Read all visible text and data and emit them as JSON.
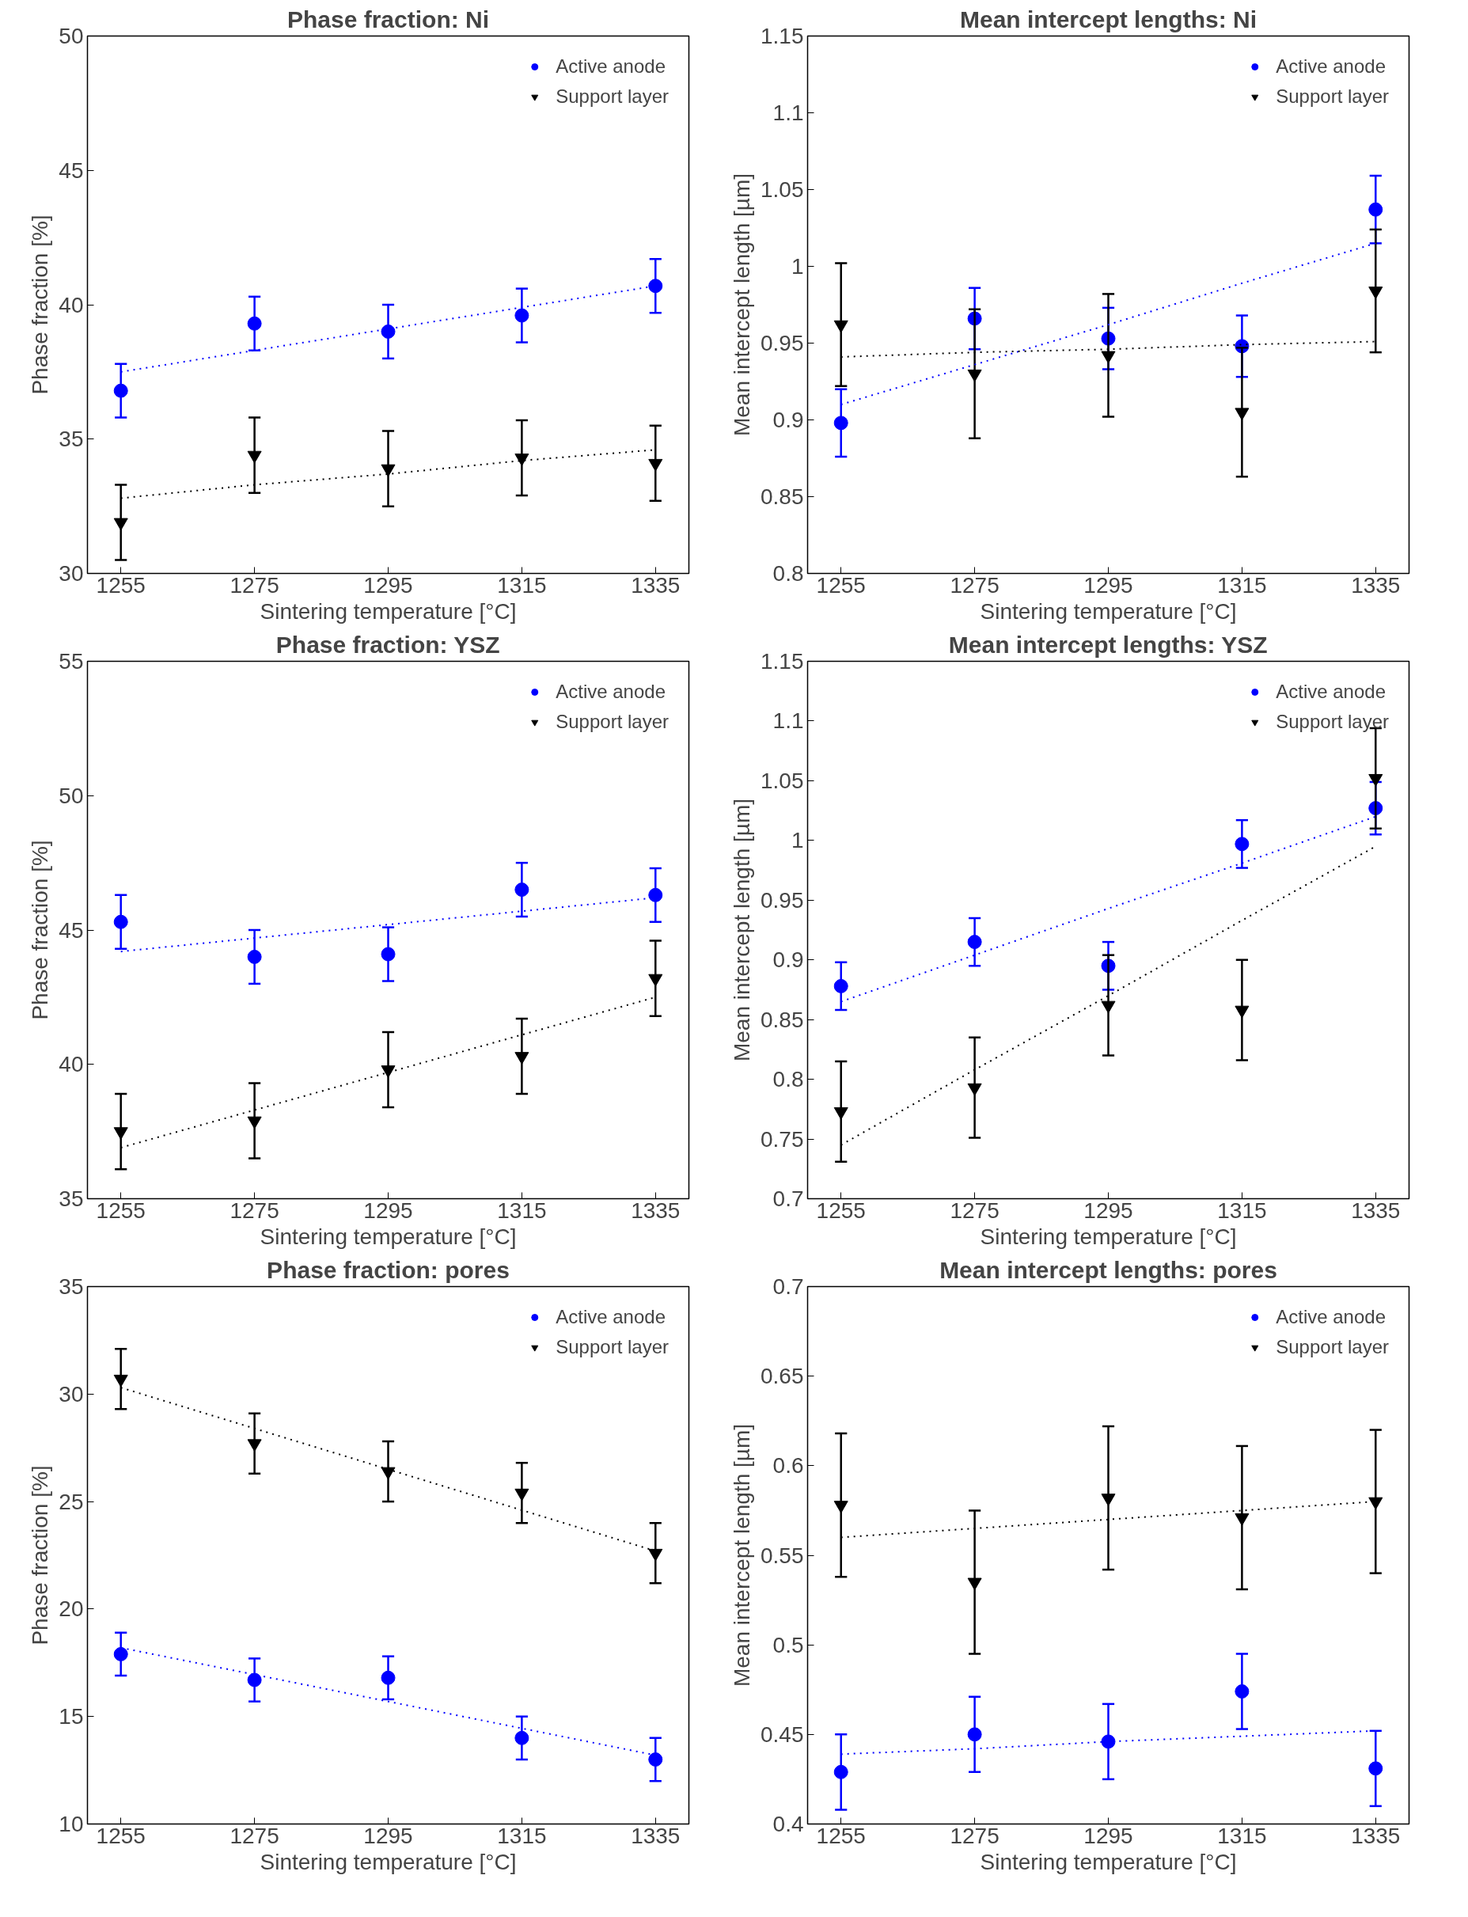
{
  "chart_data": [
    {
      "type": "scatter",
      "title": "Phase fraction: Ni",
      "xlabel": "Sintering temperature [°C]",
      "ylabel": "Phase fraction [%]",
      "x": [
        1255,
        1275,
        1295,
        1315,
        1335
      ],
      "xlim": [
        1250,
        1340
      ],
      "xticks": [
        1255,
        1275,
        1295,
        1315,
        1335
      ],
      "ylim": [
        30,
        50
      ],
      "yticks": [
        30,
        35,
        40,
        45,
        50
      ],
      "legend": "top right",
      "grid": false,
      "series": [
        {
          "name": "Active anode",
          "marker": "circle",
          "color": "#0000ff",
          "values": [
            36.8,
            39.3,
            39.0,
            39.6,
            40.7
          ],
          "errors": [
            1.0,
            1.0,
            1.0,
            1.0,
            1.0
          ]
        },
        {
          "name": "Support layer",
          "marker": "triangle",
          "color": "#000000",
          "values": [
            31.9,
            34.4,
            33.9,
            34.3,
            34.1
          ],
          "errors": [
            1.4,
            1.4,
            1.4,
            1.4,
            1.4
          ]
        },
        {
          "type": "line",
          "line_style": "dotted",
          "marker": "none",
          "color": "#0000ff",
          "values": [
            37.5,
            38.3,
            39.1,
            39.9,
            40.7
          ]
        },
        {
          "type": "line",
          "line_style": "dotted",
          "marker": "none",
          "color": "#000000",
          "values": [
            32.8,
            33.3,
            33.7,
            34.2,
            34.6
          ]
        }
      ]
    },
    {
      "type": "scatter",
      "title": "Mean intercept lengths: Ni",
      "xlabel": "Sintering temperature [°C]",
      "ylabel": "Mean intercept length [µm]",
      "x": [
        1255,
        1275,
        1295,
        1315,
        1335
      ],
      "xlim": [
        1250,
        1340
      ],
      "xticks": [
        1255,
        1275,
        1295,
        1315,
        1335
      ],
      "ylim": [
        0.8,
        1.15
      ],
      "yticks": [
        0.8,
        0.85,
        0.9,
        0.95,
        1,
        1.05,
        1.1,
        1.15
      ],
      "legend": "top right",
      "grid": false,
      "series": [
        {
          "name": "Active anode",
          "marker": "circle",
          "color": "#0000ff",
          "values": [
            0.898,
            0.966,
            0.953,
            0.948,
            1.037
          ],
          "errors": [
            0.022,
            0.02,
            0.02,
            0.02,
            0.022
          ]
        },
        {
          "name": "Support layer",
          "marker": "triangle",
          "color": "#000000",
          "values": [
            0.962,
            0.93,
            0.942,
            0.905,
            0.984
          ],
          "errors": [
            0.04,
            0.042,
            0.04,
            0.042,
            0.04
          ]
        },
        {
          "type": "line",
          "line_style": "dotted",
          "marker": "none",
          "color": "#0000ff",
          "values": [
            0.91,
            0.936,
            0.962,
            0.989,
            1.015
          ]
        },
        {
          "type": "line",
          "line_style": "dotted",
          "marker": "none",
          "color": "#000000",
          "values": [
            0.941,
            0.944,
            0.946,
            0.949,
            0.951
          ]
        }
      ]
    },
    {
      "type": "scatter",
      "title": "Phase fraction: YSZ",
      "xlabel": "Sintering temperature [°C]",
      "ylabel": "Phase fraction [%]",
      "x": [
        1255,
        1275,
        1295,
        1315,
        1335
      ],
      "xlim": [
        1250,
        1340
      ],
      "xticks": [
        1255,
        1275,
        1295,
        1315,
        1335
      ],
      "ylim": [
        35,
        55
      ],
      "yticks": [
        35,
        40,
        45,
        50,
        55
      ],
      "legend": "top right",
      "grid": false,
      "series": [
        {
          "name": "Active anode",
          "marker": "circle",
          "color": "#0000ff",
          "values": [
            45.3,
            44.0,
            44.1,
            46.5,
            46.3
          ],
          "errors": [
            1.0,
            1.0,
            1.0,
            1.0,
            1.0
          ]
        },
        {
          "name": "Support layer",
          "marker": "triangle",
          "color": "#000000",
          "values": [
            37.5,
            37.9,
            39.8,
            40.3,
            43.2
          ],
          "errors": [
            1.4,
            1.4,
            1.4,
            1.4,
            1.4
          ]
        },
        {
          "type": "line",
          "line_style": "dotted",
          "marker": "none",
          "color": "#0000ff",
          "values": [
            44.2,
            44.7,
            45.2,
            45.7,
            46.2
          ]
        },
        {
          "type": "line",
          "line_style": "dotted",
          "marker": "none",
          "color": "#000000",
          "values": [
            36.9,
            38.3,
            39.7,
            41.1,
            42.5
          ]
        }
      ]
    },
    {
      "type": "scatter",
      "title": "Mean intercept lengths: YSZ",
      "xlabel": "Sintering temperature [°C]",
      "ylabel": "Mean intercept length [µm]",
      "x": [
        1255,
        1275,
        1295,
        1315,
        1335
      ],
      "xlim": [
        1250,
        1340
      ],
      "xticks": [
        1255,
        1275,
        1295,
        1315,
        1335
      ],
      "ylim": [
        0.7,
        1.15
      ],
      "yticks": [
        0.7,
        0.75,
        0.8,
        0.85,
        0.9,
        0.95,
        1,
        1.05,
        1.1,
        1.15
      ],
      "legend": "top right",
      "grid": false,
      "series": [
        {
          "name": "Active anode",
          "marker": "circle",
          "color": "#0000ff",
          "values": [
            0.878,
            0.915,
            0.895,
            0.997,
            1.027
          ],
          "errors": [
            0.02,
            0.02,
            0.02,
            0.02,
            0.022
          ]
        },
        {
          "name": "Support layer",
          "marker": "triangle",
          "color": "#000000",
          "values": [
            0.773,
            0.793,
            0.862,
            0.858,
            1.052
          ],
          "errors": [
            0.042,
            0.042,
            0.042,
            0.042,
            0.042
          ]
        },
        {
          "type": "line",
          "line_style": "dotted",
          "marker": "none",
          "color": "#0000ff",
          "values": [
            0.865,
            0.904,
            0.943,
            0.981,
            1.02
          ]
        },
        {
          "type": "line",
          "line_style": "dotted",
          "marker": "none",
          "color": "#000000",
          "values": [
            0.745,
            0.808,
            0.87,
            0.933,
            0.995
          ]
        }
      ]
    },
    {
      "type": "scatter",
      "title": "Phase fraction: pores",
      "xlabel": "Sintering temperature [°C]",
      "ylabel": "Phase fraction [%]",
      "x": [
        1255,
        1275,
        1295,
        1315,
        1335
      ],
      "xlim": [
        1250,
        1340
      ],
      "xticks": [
        1255,
        1275,
        1295,
        1315,
        1335
      ],
      "ylim": [
        10,
        35
      ],
      "yticks": [
        10,
        15,
        20,
        25,
        30,
        35
      ],
      "legend": "top right",
      "grid": false,
      "series": [
        {
          "name": "Active anode",
          "marker": "circle",
          "color": "#0000ff",
          "values": [
            17.9,
            16.7,
            16.8,
            14.0,
            13.0
          ],
          "errors": [
            1.0,
            1.0,
            1.0,
            1.0,
            1.0
          ]
        },
        {
          "name": "Support layer",
          "marker": "triangle",
          "color": "#000000",
          "values": [
            30.7,
            27.7,
            26.4,
            25.4,
            22.6
          ],
          "errors": [
            1.4,
            1.4,
            1.4,
            1.4,
            1.4
          ]
        },
        {
          "type": "line",
          "line_style": "dotted",
          "marker": "none",
          "color": "#0000ff",
          "values": [
            18.2,
            16.95,
            15.7,
            14.45,
            13.2
          ]
        },
        {
          "type": "line",
          "line_style": "dotted",
          "marker": "none",
          "color": "#000000",
          "values": [
            30.3,
            28.4,
            26.5,
            24.6,
            22.7
          ]
        }
      ]
    },
    {
      "type": "scatter",
      "title": "Mean intercept lengths: pores",
      "xlabel": "Sintering temperature [°C]",
      "ylabel": "Mean intercept length [µm]",
      "x": [
        1255,
        1275,
        1295,
        1315,
        1335
      ],
      "xlim": [
        1250,
        1340
      ],
      "xticks": [
        1255,
        1275,
        1295,
        1315,
        1335
      ],
      "ylim": [
        0.4,
        0.7
      ],
      "yticks": [
        0.4,
        0.45,
        0.5,
        0.55,
        0.6,
        0.65,
        0.7
      ],
      "legend": "top right",
      "grid": false,
      "series": [
        {
          "name": "Active anode",
          "marker": "circle",
          "color": "#0000ff",
          "values": [
            0.429,
            0.45,
            0.446,
            0.474,
            0.431
          ],
          "errors": [
            0.021,
            0.021,
            0.021,
            0.021,
            0.021
          ]
        },
        {
          "name": "Support layer",
          "marker": "triangle",
          "color": "#000000",
          "values": [
            0.578,
            0.535,
            0.582,
            0.571,
            0.58
          ],
          "errors": [
            0.04,
            0.04,
            0.04,
            0.04,
            0.04
          ]
        },
        {
          "type": "line",
          "line_style": "dotted",
          "marker": "none",
          "color": "#0000ff",
          "values": [
            0.439,
            0.442,
            0.446,
            0.449,
            0.452
          ]
        },
        {
          "type": "line",
          "line_style": "dotted",
          "marker": "none",
          "color": "#000000",
          "values": [
            0.56,
            0.565,
            0.57,
            0.575,
            0.58
          ]
        }
      ]
    }
  ]
}
